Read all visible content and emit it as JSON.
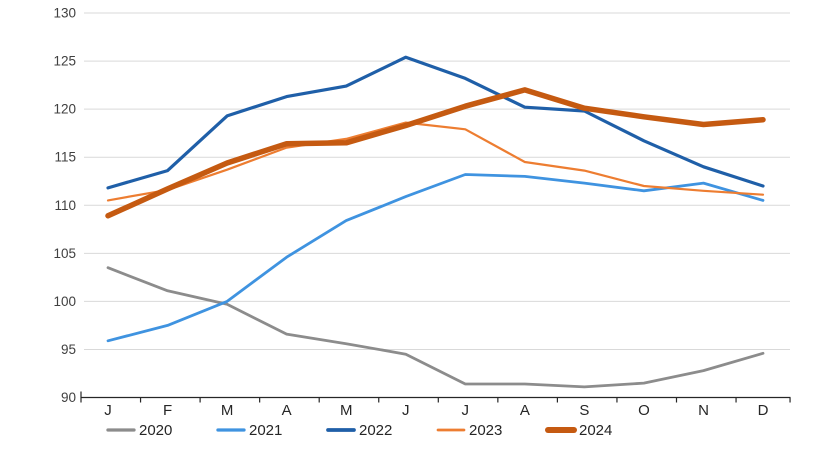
{
  "chart_data": {
    "type": "line",
    "title": "",
    "xlabel": "",
    "ylabel": "",
    "x_categories": [
      "J",
      "F",
      "M",
      "A",
      "M",
      "J",
      "J",
      "A",
      "S",
      "O",
      "N",
      "D"
    ],
    "y_axis": {
      "min": 90,
      "max": 130,
      "step": 5
    },
    "ylim": [
      90,
      130
    ],
    "grid": true,
    "legend_position": "bottom",
    "series": [
      {
        "name": "2020",
        "color": "#8C8C8C",
        "stroke_width": 2.8,
        "values": [
          103.5,
          101.1,
          99.7,
          96.6,
          95.6,
          94.5,
          91.4,
          91.4,
          91.1,
          91.5,
          92.8,
          94.6
        ]
      },
      {
        "name": "2021",
        "color": "#3F93E0",
        "stroke_width": 2.8,
        "values": [
          95.9,
          97.5,
          100.0,
          104.6,
          108.4,
          110.9,
          113.2,
          113.0,
          112.3,
          111.5,
          112.3,
          110.5
        ]
      },
      {
        "name": "2022",
        "color": "#1F5FA8",
        "stroke_width": 3.2,
        "values": [
          111.8,
          113.6,
          119.3,
          121.3,
          122.4,
          125.4,
          123.2,
          120.2,
          119.8,
          116.7,
          114.0,
          112.0
        ]
      },
      {
        "name": "2023",
        "color": "#ED7D31",
        "stroke_width": 2.2,
        "values": [
          110.5,
          111.6,
          113.7,
          116.0,
          116.9,
          118.6,
          117.9,
          114.5,
          113.6,
          112.0,
          111.5,
          111.1
        ]
      },
      {
        "name": "2024",
        "color": "#C55A11",
        "stroke_width": 5.5,
        "values": [
          108.9,
          111.7,
          114.4,
          116.4,
          116.5,
          118.3,
          120.3,
          122.0,
          120.1,
          119.2,
          118.4,
          118.9
        ]
      }
    ],
    "colors": {
      "background": "#FFFFFF",
      "grid": "#D9D9D9",
      "axis": "#262626",
      "y_tick_label": "#404040",
      "x_tick_label": "#262626"
    }
  }
}
